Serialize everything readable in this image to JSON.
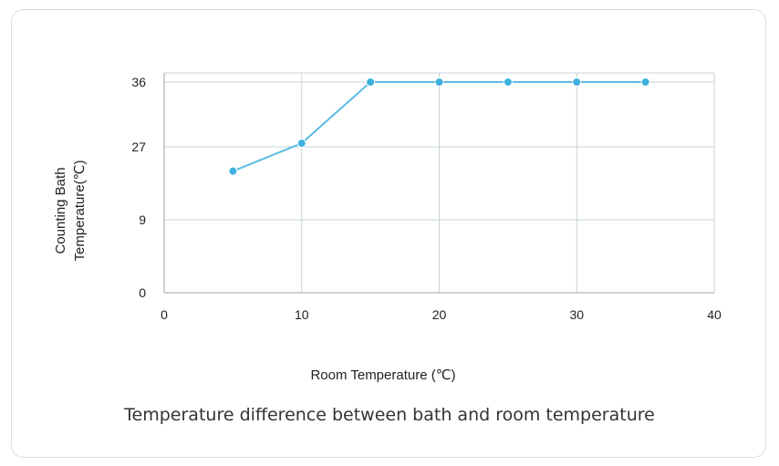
{
  "caption": "Temperature difference between bath and room temperature",
  "colors": {
    "line": "#5bbbe3",
    "marker": "#3fb0e0",
    "grid": "#c9d4da",
    "axis": "#9aa5ab"
  },
  "chart_data": {
    "type": "line",
    "title": "",
    "xlabel": "Room Temperature (℃)",
    "ylabel": [
      "Counting Bath",
      "Temperature(℃)"
    ],
    "xlim": [
      0,
      40
    ],
    "x_ticks": [
      "0",
      "10",
      "20",
      "30",
      "40"
    ],
    "y_ticks": [
      "0",
      "9",
      "27",
      "36"
    ],
    "y_scale": "categorical-evenly-spaced",
    "grid": true,
    "series": [
      {
        "x": [
          5,
          10,
          15,
          20,
          25,
          30,
          35
        ],
        "y": [
          21,
          27.5,
          36,
          36,
          36,
          36,
          36
        ]
      }
    ]
  }
}
